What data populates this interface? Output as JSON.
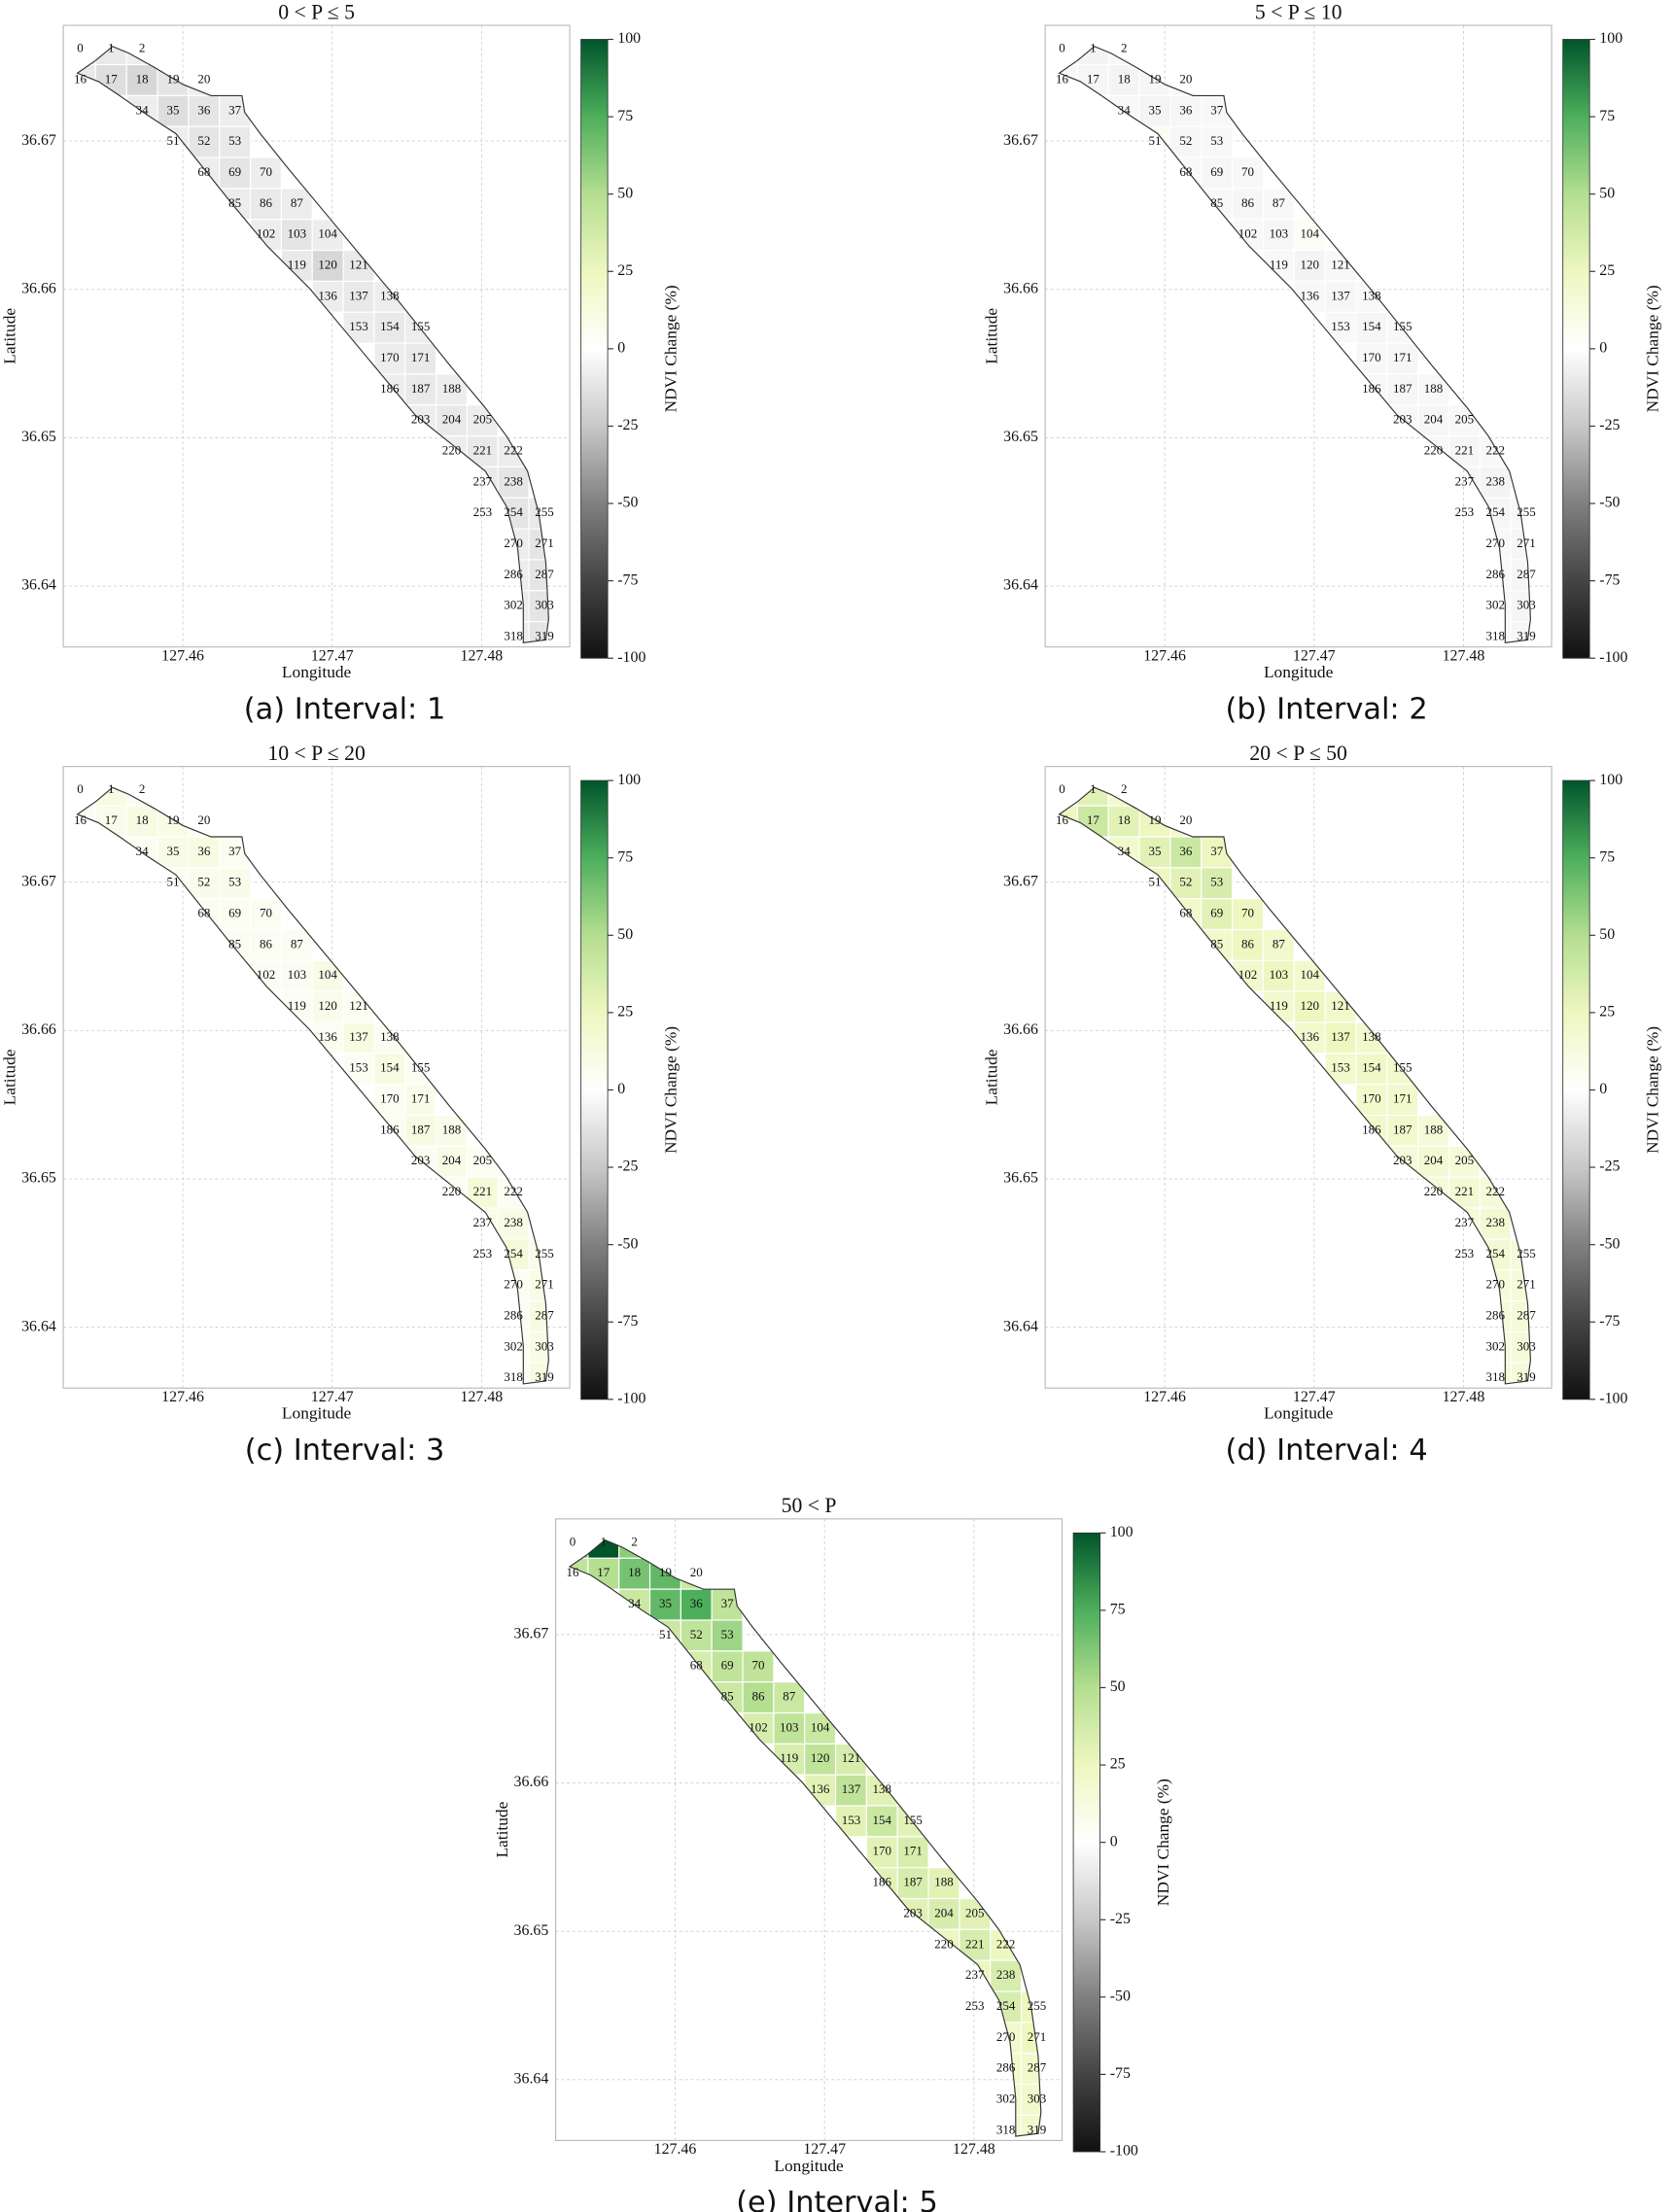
{
  "chart_data": [
    {
      "type": "cellmap",
      "title": "0 < P ≤ 5",
      "caption": "(a) Interval: 1",
      "xlabel": "Longitude",
      "ylabel": "Latitude",
      "xlim": [
        127.452,
        127.4859
      ],
      "ylim": [
        36.6359,
        36.6778
      ],
      "xticks": [
        127.46,
        127.47,
        127.48
      ],
      "yticks": [
        36.64,
        36.65,
        36.66,
        36.67
      ],
      "grid": true,
      "colorbar": {
        "label": "NDVI Change (%)",
        "lim": [
          -100,
          100
        ],
        "ticks": [
          -100,
          -75,
          -50,
          -25,
          0,
          25,
          50,
          75,
          100
        ],
        "colors": [
          "#111111",
          "#444444",
          "#808080",
          "#c8c8c8",
          "#ffffff",
          "#eef7c0",
          "#b4de90",
          "#4daf5c",
          "#00552b"
        ]
      },
      "categories": [
        "0",
        "1",
        "2",
        "16",
        "17",
        "18",
        "19",
        "20",
        "34",
        "35",
        "36",
        "37",
        "51",
        "52",
        "53",
        "68",
        "69",
        "70",
        "85",
        "86",
        "87",
        "102",
        "103",
        "104",
        "119",
        "120",
        "121",
        "136",
        "137",
        "138",
        "153",
        "154",
        "155",
        "170",
        "171",
        "186",
        "187",
        "188",
        "203",
        "204",
        "205",
        "220",
        "221",
        "222",
        "237",
        "238",
        "253",
        "254",
        "255",
        "270",
        "271",
        "286",
        "287",
        "302",
        "303",
        "318",
        "319"
      ],
      "values": [
        -8,
        -10,
        -8,
        -10,
        -15,
        -18,
        -12,
        -8,
        -8,
        -15,
        -12,
        -8,
        -8,
        -12,
        -10,
        -8,
        -12,
        -8,
        -8,
        -10,
        -8,
        -8,
        -12,
        -8,
        -10,
        -18,
        -10,
        -8,
        -10,
        -8,
        -8,
        -10,
        -8,
        -8,
        -10,
        -8,
        -10,
        -8,
        -8,
        -10,
        -8,
        -8,
        -10,
        -8,
        -10,
        -12,
        -8,
        -12,
        -10,
        -8,
        -12,
        -8,
        -12,
        -8,
        -12,
        -8,
        -12
      ]
    },
    {
      "type": "cellmap",
      "title": "5 < P ≤ 10",
      "caption": "(b) Interval: 2",
      "xlabel": "Longitude",
      "ylabel": "Latitude",
      "xlim": [
        127.452,
        127.4859
      ],
      "ylim": [
        36.6359,
        36.6778
      ],
      "xticks": [
        127.46,
        127.47,
        127.48
      ],
      "yticks": [
        36.64,
        36.65,
        36.66,
        36.67
      ],
      "grid": true,
      "colorbar": {
        "label": "NDVI Change (%)",
        "lim": [
          -100,
          100
        ],
        "ticks": [
          -100,
          -75,
          -50,
          -25,
          0,
          25,
          50,
          75,
          100
        ],
        "colors": [
          "#111111",
          "#444444",
          "#808080",
          "#c8c8c8",
          "#ffffff",
          "#eef7c0",
          "#b4de90",
          "#4daf5c",
          "#00552b"
        ]
      },
      "categories": [
        "0",
        "1",
        "2",
        "16",
        "17",
        "18",
        "19",
        "20",
        "34",
        "35",
        "36",
        "37",
        "51",
        "52",
        "53",
        "68",
        "69",
        "70",
        "85",
        "86",
        "87",
        "102",
        "103",
        "104",
        "119",
        "120",
        "121",
        "136",
        "137",
        "138",
        "153",
        "154",
        "155",
        "170",
        "171",
        "186",
        "187",
        "188",
        "203",
        "204",
        "205",
        "220",
        "221",
        "222",
        "237",
        "238",
        "253",
        "254",
        "255",
        "270",
        "271",
        "286",
        "287",
        "302",
        "303",
        "318",
        "319"
      ],
      "values": [
        -3,
        -5,
        -3,
        -3,
        -4,
        -5,
        -4,
        -3,
        -3,
        -5,
        -4,
        -3,
        5,
        -4,
        -3,
        -3,
        -4,
        -3,
        -3,
        -4,
        -3,
        -3,
        -4,
        4,
        -3,
        -5,
        -3,
        -3,
        -4,
        -3,
        -3,
        -4,
        -3,
        -3,
        -4,
        -3,
        -4,
        -3,
        -3,
        -4,
        -3,
        -3,
        -4,
        -3,
        -4,
        -5,
        -3,
        -4,
        -3,
        -3,
        -4,
        -3,
        -4,
        -3,
        -4,
        -3,
        -4
      ]
    },
    {
      "type": "cellmap",
      "title": "10 < P ≤ 20",
      "caption": "(c) Interval: 3",
      "xlabel": "Longitude",
      "ylabel": "Latitude",
      "xlim": [
        127.452,
        127.4859
      ],
      "ylim": [
        36.6359,
        36.6778
      ],
      "xticks": [
        127.46,
        127.47,
        127.48
      ],
      "yticks": [
        36.64,
        36.65,
        36.66,
        36.67
      ],
      "grid": true,
      "colorbar": {
        "label": "NDVI Change (%)",
        "lim": [
          -100,
          100
        ],
        "ticks": [
          -100,
          -75,
          -50,
          -25,
          0,
          25,
          50,
          75,
          100
        ],
        "colors": [
          "#111111",
          "#444444",
          "#808080",
          "#c8c8c8",
          "#ffffff",
          "#eef7c0",
          "#b4de90",
          "#4daf5c",
          "#00552b"
        ]
      },
      "categories": [
        "0",
        "1",
        "2",
        "16",
        "17",
        "18",
        "19",
        "20",
        "34",
        "35",
        "36",
        "37",
        "51",
        "52",
        "53",
        "68",
        "69",
        "70",
        "85",
        "86",
        "87",
        "102",
        "103",
        "104",
        "119",
        "120",
        "121",
        "136",
        "137",
        "138",
        "153",
        "154",
        "155",
        "170",
        "171",
        "186",
        "187",
        "188",
        "203",
        "204",
        "205",
        "220",
        "221",
        "222",
        "237",
        "238",
        "253",
        "254",
        "255",
        "270",
        "271",
        "286",
        "287",
        "302",
        "303",
        "318",
        "319"
      ],
      "values": [
        5,
        12,
        5,
        5,
        8,
        12,
        10,
        5,
        5,
        10,
        12,
        5,
        5,
        8,
        8,
        5,
        5,
        5,
        5,
        5,
        5,
        5,
        5,
        10,
        5,
        8,
        5,
        5,
        12,
        5,
        5,
        12,
        5,
        5,
        8,
        5,
        12,
        8,
        5,
        10,
        5,
        5,
        15,
        5,
        8,
        10,
        5,
        15,
        8,
        5,
        10,
        5,
        12,
        5,
        10,
        5,
        12
      ]
    },
    {
      "type": "cellmap",
      "title": "20 < P ≤ 50",
      "caption": "(d) Interval: 4",
      "xlabel": "Longitude",
      "ylabel": "Latitude",
      "xlim": [
        127.452,
        127.4859
      ],
      "ylim": [
        36.6359,
        36.6778
      ],
      "xticks": [
        127.46,
        127.47,
        127.48
      ],
      "yticks": [
        36.64,
        36.65,
        36.66,
        36.67
      ],
      "grid": true,
      "colorbar": {
        "label": "NDVI Change (%)",
        "lim": [
          -100,
          100
        ],
        "ticks": [
          -100,
          -75,
          -50,
          -25,
          0,
          25,
          50,
          75,
          100
        ],
        "colors": [
          "#111111",
          "#444444",
          "#808080",
          "#c8c8c8",
          "#ffffff",
          "#eef7c0",
          "#b4de90",
          "#4daf5c",
          "#00552b"
        ]
      },
      "categories": [
        "0",
        "1",
        "2",
        "16",
        "17",
        "18",
        "19",
        "20",
        "34",
        "35",
        "36",
        "37",
        "51",
        "52",
        "53",
        "68",
        "69",
        "70",
        "85",
        "86",
        "87",
        "102",
        "103",
        "104",
        "119",
        "120",
        "121",
        "136",
        "137",
        "138",
        "153",
        "154",
        "155",
        "170",
        "171",
        "186",
        "187",
        "188",
        "203",
        "204",
        "205",
        "220",
        "221",
        "222",
        "237",
        "238",
        "253",
        "254",
        "255",
        "270",
        "271",
        "286",
        "287",
        "302",
        "303",
        "318",
        "319"
      ],
      "values": [
        20,
        30,
        20,
        25,
        40,
        30,
        25,
        20,
        20,
        30,
        40,
        25,
        25,
        30,
        35,
        20,
        30,
        25,
        20,
        25,
        20,
        20,
        25,
        20,
        20,
        25,
        20,
        20,
        25,
        20,
        20,
        22,
        20,
        20,
        20,
        20,
        20,
        15,
        15,
        18,
        15,
        15,
        18,
        15,
        15,
        18,
        15,
        18,
        15,
        15,
        15,
        15,
        15,
        15,
        15,
        15,
        15
      ]
    },
    {
      "type": "cellmap",
      "title": "50 < P",
      "caption": "(e) Interval: 5",
      "xlabel": "Longitude",
      "ylabel": "Latitude",
      "xlim": [
        127.452,
        127.4859
      ],
      "ylim": [
        36.6359,
        36.6778
      ],
      "xticks": [
        127.46,
        127.47,
        127.48
      ],
      "yticks": [
        36.64,
        36.65,
        36.66,
        36.67
      ],
      "grid": true,
      "colorbar": {
        "label": "NDVI Change (%)",
        "lim": [
          -100,
          100
        ],
        "ticks": [
          -100,
          -75,
          -50,
          -25,
          0,
          25,
          50,
          75,
          100
        ],
        "colors": [
          "#111111",
          "#444444",
          "#808080",
          "#c8c8c8",
          "#ffffff",
          "#eef7c0",
          "#b4de90",
          "#4daf5c",
          "#00552b"
        ]
      },
      "categories": [
        "0",
        "1",
        "2",
        "16",
        "17",
        "18",
        "19",
        "20",
        "34",
        "35",
        "36",
        "37",
        "51",
        "52",
        "53",
        "68",
        "69",
        "70",
        "85",
        "86",
        "87",
        "102",
        "103",
        "104",
        "119",
        "120",
        "121",
        "136",
        "137",
        "138",
        "153",
        "154",
        "155",
        "170",
        "171",
        "186",
        "187",
        "188",
        "203",
        "204",
        "205",
        "220",
        "221",
        "222",
        "237",
        "238",
        "253",
        "254",
        "255",
        "270",
        "271",
        "286",
        "287",
        "302",
        "303",
        "318",
        "319"
      ],
      "values": [
        60,
        100,
        60,
        45,
        50,
        65,
        70,
        40,
        40,
        70,
        75,
        45,
        40,
        45,
        55,
        35,
        45,
        45,
        40,
        50,
        40,
        35,
        45,
        40,
        35,
        45,
        35,
        30,
        45,
        30,
        30,
        40,
        30,
        30,
        35,
        30,
        35,
        30,
        30,
        35,
        30,
        25,
        35,
        25,
        25,
        35,
        20,
        35,
        25,
        20,
        25,
        20,
        20,
        20,
        20,
        20,
        20
      ]
    }
  ]
}
